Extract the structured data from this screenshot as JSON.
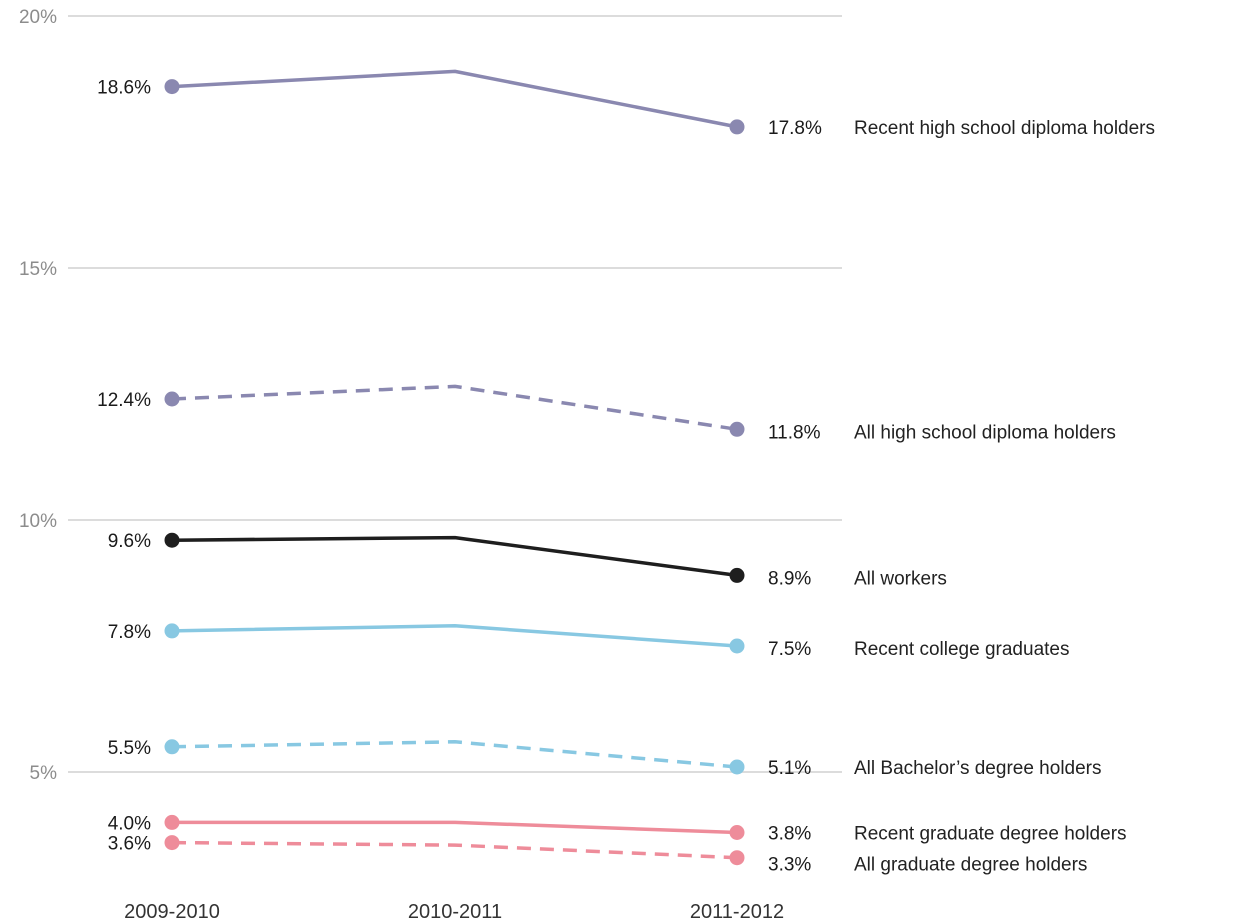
{
  "chart_data": {
    "type": "line",
    "title": "",
    "xlabel": "",
    "ylabel": "",
    "categories": [
      "2009-2010",
      "2010-2011",
      "2011-2012"
    ],
    "ylim": [
      3,
      20
    ],
    "y_ticks": [
      {
        "value": 20,
        "label": "20%"
      },
      {
        "value": 15,
        "label": "15%"
      },
      {
        "value": 10,
        "label": "10%"
      },
      {
        "value": 5,
        "label": "5%"
      }
    ],
    "grid": true,
    "series": [
      {
        "name": "Recent high school diploma holders",
        "values": [
          18.6,
          18.9,
          17.8
        ],
        "start_label": "18.6%",
        "end_label": "17.8%",
        "color": "#8a88b0",
        "dashed": false
      },
      {
        "name": "All high school diploma holders",
        "values": [
          12.4,
          12.65,
          11.8
        ],
        "start_label": "12.4%",
        "end_label": "11.8%",
        "color": "#8a88b0",
        "dashed": true
      },
      {
        "name": "All workers",
        "values": [
          9.6,
          9.65,
          8.9
        ],
        "start_label": "9.6%",
        "end_label": "8.9%",
        "color": "#1e1e1e",
        "dashed": false
      },
      {
        "name": "Recent college graduates",
        "values": [
          7.8,
          7.9,
          7.5
        ],
        "start_label": "7.8%",
        "end_label": "7.5%",
        "color": "#88c8e2",
        "dashed": false
      },
      {
        "name": "All Bachelor’s degree holders",
        "values": [
          5.5,
          5.6,
          5.1
        ],
        "start_label": "5.5%",
        "end_label": "5.1%",
        "color": "#88c8e2",
        "dashed": true
      },
      {
        "name": "Recent graduate degree holders",
        "values": [
          4.0,
          4.0,
          3.8
        ],
        "start_label": "4.0%",
        "end_label": "3.8%",
        "color": "#ee8c9a",
        "dashed": false
      },
      {
        "name": "All graduate degree holders",
        "values": [
          3.6,
          3.55,
          3.3
        ],
        "start_label": "3.6%",
        "end_label": "3.3%",
        "color": "#ee8c9a",
        "dashed": true
      }
    ]
  }
}
